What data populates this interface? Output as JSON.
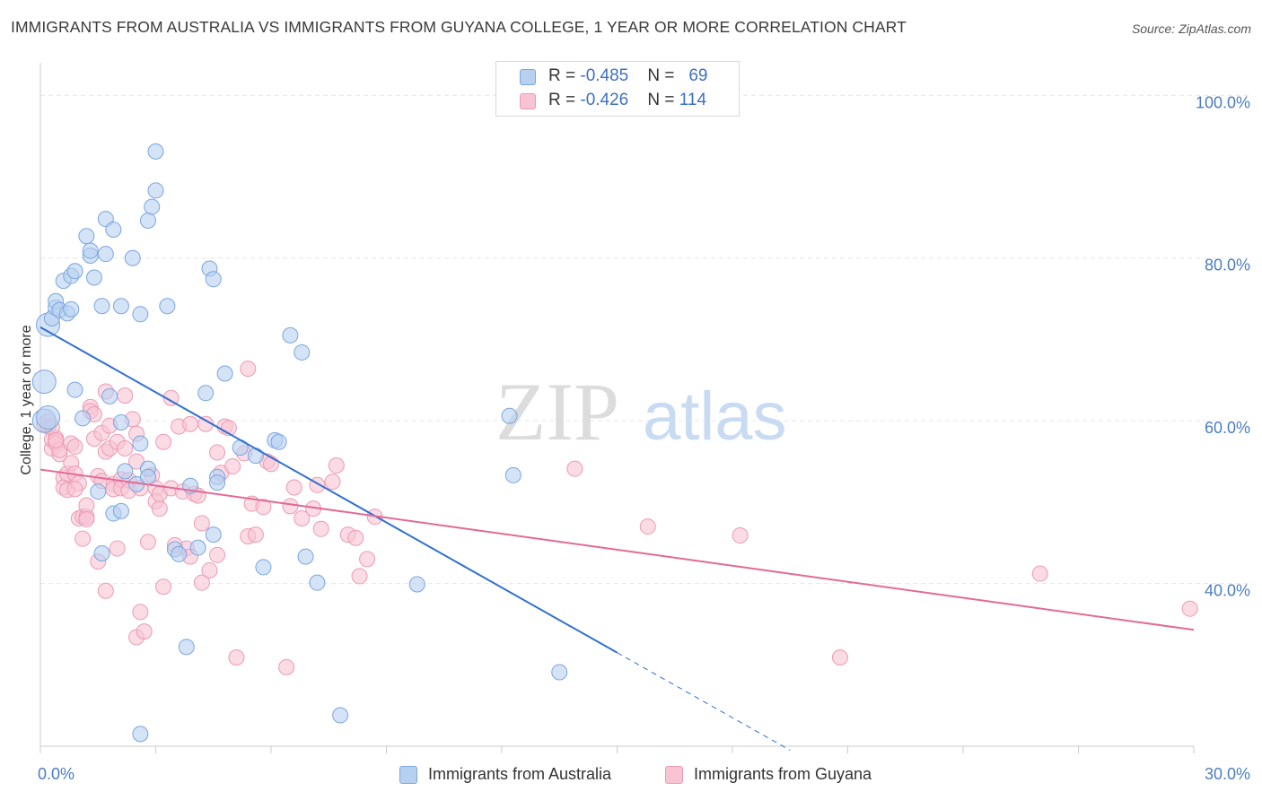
{
  "title": "IMMIGRANTS FROM AUSTRALIA VS IMMIGRANTS FROM GUYANA COLLEGE, 1 YEAR OR MORE CORRELATION CHART",
  "source": "Source: ZipAtlas.com",
  "watermark": {
    "zip": "ZIP",
    "atlas": "atlas"
  },
  "colors": {
    "blue_fill": "#b8d0f0",
    "blue_stroke": "#7aa6e0",
    "blue_line": "#3070d0",
    "pink_fill": "#f8c4d4",
    "pink_stroke": "#ec9ab4",
    "pink_line": "#e26a96",
    "grid": "#e6e6e6",
    "axis_label": "#4a7cc4"
  },
  "stats": [
    {
      "r_label": "R = ",
      "r_value": "-0.485",
      "n_label": "N = ",
      "n_value": "69",
      "series": "australia"
    },
    {
      "r_label": "R = ",
      "r_value": "-0.426",
      "n_label": "N = ",
      "n_value": "114",
      "series": "guyana"
    }
  ],
  "legend": [
    {
      "label": "Immigrants from Australia",
      "series": "australia"
    },
    {
      "label": "Immigrants from Guyana",
      "series": "guyana"
    }
  ],
  "chart_data": {
    "type": "scatter",
    "title": "IMMIGRANTS FROM AUSTRALIA VS IMMIGRANTS FROM GUYANA COLLEGE, 1 YEAR OR MORE CORRELATION CHART",
    "xlabel": "",
    "ylabel": "College, 1 year or more",
    "xlim": [
      0,
      30
    ],
    "ylim": [
      20,
      104
    ],
    "x_tick_labels": [
      {
        "value": 0,
        "label": "0.0%"
      },
      {
        "value": 30,
        "label": "30.0%"
      }
    ],
    "y_tick_labels": [
      {
        "value": 40,
        "label": "40.0%"
      },
      {
        "value": 60,
        "label": "60.0%"
      },
      {
        "value": 80,
        "label": "80.0%"
      },
      {
        "value": 100,
        "label": "100.0%"
      }
    ],
    "series": [
      {
        "name": "Immigrants from Australia",
        "key": "australia",
        "trend": {
          "x0": 0,
          "y0": 71.5,
          "x1": 15,
          "y1": 31.5,
          "dash_to_x": 19.5,
          "dash_to_y": 19.5
        },
        "points": [
          [
            0.1,
            64.8
          ],
          [
            0.1,
            60.0
          ],
          [
            0.2,
            71.8
          ],
          [
            0.3,
            72.6
          ],
          [
            0.4,
            73.9
          ],
          [
            0.4,
            74.7
          ],
          [
            0.5,
            73.6
          ],
          [
            0.6,
            77.2
          ],
          [
            0.7,
            73.2
          ],
          [
            0.8,
            73.7
          ],
          [
            0.8,
            77.8
          ],
          [
            0.9,
            78.4
          ],
          [
            0.9,
            63.8
          ],
          [
            1.1,
            60.3
          ],
          [
            1.2,
            82.7
          ],
          [
            1.3,
            80.3
          ],
          [
            1.3,
            80.9
          ],
          [
            1.4,
            77.6
          ],
          [
            1.5,
            51.3
          ],
          [
            1.6,
            74.1
          ],
          [
            1.6,
            43.7
          ],
          [
            1.7,
            84.8
          ],
          [
            1.7,
            80.5
          ],
          [
            1.8,
            63.0
          ],
          [
            1.9,
            83.5
          ],
          [
            1.9,
            48.6
          ],
          [
            2.1,
            59.8
          ],
          [
            2.1,
            48.9
          ],
          [
            2.1,
            74.1
          ],
          [
            2.2,
            53.8
          ],
          [
            2.4,
            80.0
          ],
          [
            2.5,
            52.2
          ],
          [
            2.6,
            73.1
          ],
          [
            2.6,
            57.2
          ],
          [
            2.6,
            21.5
          ],
          [
            2.8,
            54.1
          ],
          [
            2.8,
            53.1
          ],
          [
            2.8,
            84.6
          ],
          [
            2.9,
            86.3
          ],
          [
            3.0,
            93.1
          ],
          [
            3.0,
            88.3
          ],
          [
            3.3,
            74.1
          ],
          [
            3.5,
            44.2
          ],
          [
            3.6,
            43.6
          ],
          [
            3.8,
            32.2
          ],
          [
            3.9,
            52.0
          ],
          [
            4.1,
            44.4
          ],
          [
            4.3,
            63.4
          ],
          [
            4.4,
            78.7
          ],
          [
            4.5,
            77.4
          ],
          [
            4.5,
            46.0
          ],
          [
            4.6,
            53.1
          ],
          [
            4.6,
            52.4
          ],
          [
            4.8,
            65.8
          ],
          [
            5.2,
            56.7
          ],
          [
            5.6,
            55.7
          ],
          [
            5.8,
            42.0
          ],
          [
            6.1,
            57.6
          ],
          [
            6.2,
            57.4
          ],
          [
            6.5,
            70.5
          ],
          [
            6.8,
            68.4
          ],
          [
            6.9,
            43.3
          ],
          [
            7.2,
            40.1
          ],
          [
            7.8,
            23.8
          ],
          [
            9.8,
            39.9
          ],
          [
            12.2,
            60.6
          ],
          [
            12.3,
            53.3
          ],
          [
            13.5,
            29.1
          ],
          [
            0.2,
            60.4
          ]
        ]
      },
      {
        "name": "Immigrants from Guyana",
        "key": "guyana",
        "trend": {
          "x0": 0,
          "y0": 54.0,
          "x1": 30,
          "y1": 34.3
        },
        "points": [
          [
            0.1,
            59.6
          ],
          [
            0.2,
            59.3
          ],
          [
            0.2,
            59.9
          ],
          [
            0.3,
            56.6
          ],
          [
            0.3,
            57.7
          ],
          [
            0.4,
            57.9
          ],
          [
            0.4,
            57.2
          ],
          [
            0.5,
            55.9
          ],
          [
            0.5,
            56.4
          ],
          [
            0.6,
            53.0
          ],
          [
            0.6,
            51.8
          ],
          [
            0.7,
            51.5
          ],
          [
            0.7,
            53.5
          ],
          [
            0.8,
            54.8
          ],
          [
            0.8,
            57.2
          ],
          [
            0.9,
            56.8
          ],
          [
            0.9,
            53.5
          ],
          [
            1.0,
            48.0
          ],
          [
            1.0,
            52.3
          ],
          [
            1.1,
            45.5
          ],
          [
            1.1,
            48.2
          ],
          [
            1.2,
            48.2
          ],
          [
            1.2,
            49.6
          ],
          [
            1.3,
            61.7
          ],
          [
            1.3,
            61.2
          ],
          [
            1.4,
            57.8
          ],
          [
            1.4,
            60.8
          ],
          [
            1.5,
            53.2
          ],
          [
            1.5,
            42.7
          ],
          [
            1.6,
            58.5
          ],
          [
            1.6,
            52.6
          ],
          [
            1.7,
            63.6
          ],
          [
            1.7,
            56.2
          ],
          [
            1.7,
            39.1
          ],
          [
            1.8,
            56.6
          ],
          [
            1.8,
            59.4
          ],
          [
            1.9,
            52.2
          ],
          [
            1.9,
            51.6
          ],
          [
            2.0,
            44.3
          ],
          [
            2.0,
            57.4
          ],
          [
            2.1,
            52.8
          ],
          [
            2.1,
            51.7
          ],
          [
            2.2,
            63.1
          ],
          [
            2.3,
            52.7
          ],
          [
            2.3,
            51.4
          ],
          [
            2.4,
            60.2
          ],
          [
            2.5,
            55.0
          ],
          [
            2.5,
            58.4
          ],
          [
            2.5,
            33.4
          ],
          [
            2.6,
            36.5
          ],
          [
            2.6,
            51.7
          ],
          [
            2.7,
            34.1
          ],
          [
            2.8,
            45.1
          ],
          [
            2.9,
            53.3
          ],
          [
            3.0,
            51.7
          ],
          [
            3.0,
            50.1
          ],
          [
            3.1,
            49.2
          ],
          [
            3.1,
            51.0
          ],
          [
            3.2,
            57.4
          ],
          [
            3.2,
            39.6
          ],
          [
            3.4,
            51.7
          ],
          [
            3.4,
            62.8
          ],
          [
            3.5,
            44.7
          ],
          [
            3.6,
            59.3
          ],
          [
            3.7,
            51.3
          ],
          [
            3.8,
            44.3
          ],
          [
            3.9,
            43.3
          ],
          [
            3.9,
            59.6
          ],
          [
            4.0,
            51.0
          ],
          [
            4.1,
            50.8
          ],
          [
            4.2,
            40.1
          ],
          [
            4.2,
            47.4
          ],
          [
            4.3,
            59.6
          ],
          [
            4.4,
            41.6
          ],
          [
            4.6,
            56.1
          ],
          [
            4.6,
            43.5
          ],
          [
            4.7,
            53.6
          ],
          [
            4.8,
            59.3
          ],
          [
            4.9,
            59.1
          ],
          [
            5.0,
            54.4
          ],
          [
            5.1,
            30.9
          ],
          [
            5.3,
            56.0
          ],
          [
            5.4,
            45.8
          ],
          [
            5.5,
            49.8
          ],
          [
            5.6,
            46.0
          ],
          [
            5.8,
            49.4
          ],
          [
            5.9,
            55.0
          ],
          [
            6.0,
            54.7
          ],
          [
            6.4,
            29.7
          ],
          [
            6.5,
            49.5
          ],
          [
            6.6,
            51.8
          ],
          [
            6.8,
            48.0
          ],
          [
            7.1,
            49.2
          ],
          [
            7.2,
            52.1
          ],
          [
            7.3,
            46.7
          ],
          [
            7.6,
            52.5
          ],
          [
            7.7,
            54.5
          ],
          [
            8.0,
            46.0
          ],
          [
            8.2,
            45.6
          ],
          [
            8.3,
            40.9
          ],
          [
            8.5,
            43.0
          ],
          [
            8.7,
            48.2
          ],
          [
            13.9,
            54.1
          ],
          [
            15.8,
            47.0
          ],
          [
            18.2,
            45.9
          ],
          [
            20.8,
            30.9
          ],
          [
            26.0,
            41.2
          ],
          [
            29.9,
            36.9
          ],
          [
            5.4,
            66.4
          ],
          [
            0.3,
            59.2
          ],
          [
            0.4,
            57.6
          ],
          [
            1.2,
            47.9
          ],
          [
            0.9,
            51.6
          ],
          [
            2.2,
            56.6
          ]
        ]
      }
    ]
  }
}
